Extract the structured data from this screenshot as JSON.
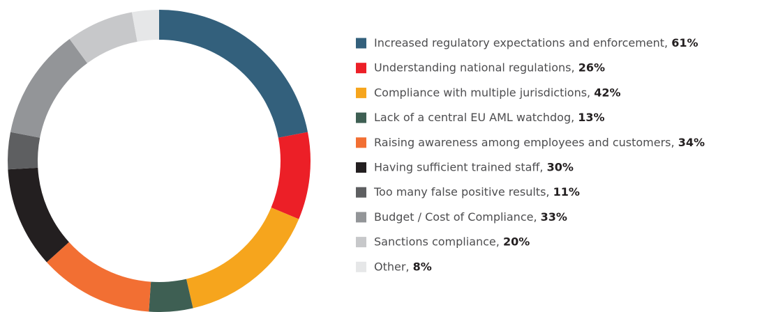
{
  "chart_data": {
    "type": "pie",
    "donut": true,
    "categories": [
      "Increased regulatory expectations and enforcement,",
      "Understanding national regulations,",
      "Compliance with multiple jurisdictions,",
      "Lack of a central EU AML watchdog,",
      "Raising awareness among employees and customers,",
      "Having sufficient trained staff,",
      "Too many false positive results,",
      "Budget / Cost of Compliance,",
      "Sanctions compliance,",
      "Other,"
    ],
    "values": [
      61,
      26,
      42,
      13,
      34,
      30,
      11,
      33,
      20,
      8
    ],
    "value_labels": [
      "61%",
      "26%",
      "42%",
      "13%",
      "34%",
      "30%",
      "11%",
      "33%",
      "20%",
      "8%"
    ],
    "colors": [
      "#33607c",
      "#ec1f27",
      "#f6a51d",
      "#3e5f53",
      "#f26f33",
      "#231f20",
      "#5e5f61",
      "#939598",
      "#c7c8ca",
      "#e6e7e8"
    ]
  }
}
